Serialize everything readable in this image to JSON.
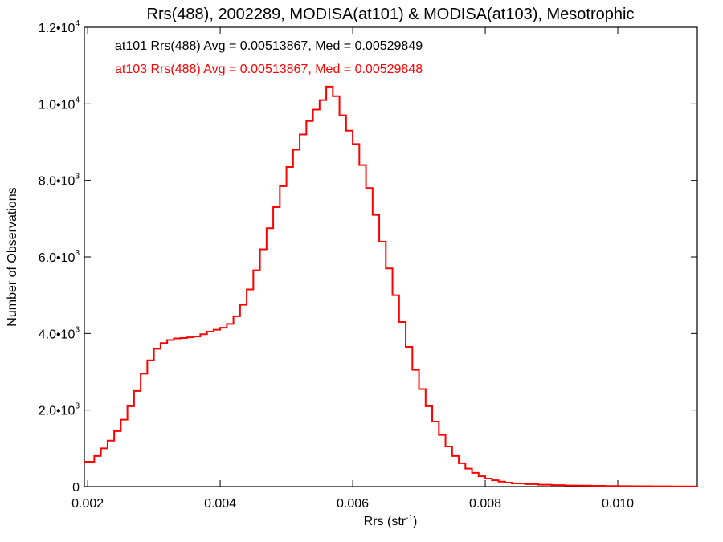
{
  "chart_data": {
    "type": "line",
    "title": "Rrs(488), 2002289, MODISA(at101) & MODISA(at103), Mesotrophic",
    "xlabel": "Rrs (str",
    "xlabel_exp": "-1",
    "xlabel_close": ")",
    "ylabel": "Number of Observations",
    "xlim": [
      0.00195,
      0.0112
    ],
    "ylim": [
      0,
      12000
    ],
    "x_ticks": [
      {
        "value": 0.002,
        "label": "0.002"
      },
      {
        "value": 0.004,
        "label": "0.004"
      },
      {
        "value": 0.006,
        "label": "0.006"
      },
      {
        "value": 0.008,
        "label": "0.008"
      },
      {
        "value": 0.01,
        "label": "0.010"
      }
    ],
    "y_ticks": [
      {
        "value": 0,
        "mantissa": "0",
        "exp": ""
      },
      {
        "value": 2000,
        "mantissa": "2.0•10",
        "exp": "3"
      },
      {
        "value": 4000,
        "mantissa": "4.0•10",
        "exp": "3"
      },
      {
        "value": 6000,
        "mantissa": "6.0•10",
        "exp": "3"
      },
      {
        "value": 8000,
        "mantissa": "8.0•10",
        "exp": "3"
      },
      {
        "value": 10000,
        "mantissa": "1.0•10",
        "exp": "4"
      },
      {
        "value": 12000,
        "mantissa": "1.2•10",
        "exp": "4"
      }
    ],
    "annotations": [
      {
        "text": "at101 Rrs(488) Avg = 0.00513867, Med = 0.00529849",
        "color": "#000000"
      },
      {
        "text": "at103 Rrs(488) Avg = 0.00513867, Med = 0.00529848",
        "color": "#ff0000"
      }
    ],
    "series": [
      {
        "color": "#ff0000",
        "style": "histogram-step",
        "points": [
          [
            0.00195,
            650
          ],
          [
            0.0021,
            800
          ],
          [
            0.0022,
            1000
          ],
          [
            0.0023,
            1200
          ],
          [
            0.0024,
            1450
          ],
          [
            0.0025,
            1750
          ],
          [
            0.0026,
            2100
          ],
          [
            0.0027,
            2500
          ],
          [
            0.0028,
            2950
          ],
          [
            0.0029,
            3300
          ],
          [
            0.003,
            3600
          ],
          [
            0.0031,
            3750
          ],
          [
            0.0032,
            3830
          ],
          [
            0.0033,
            3870
          ],
          [
            0.0034,
            3880
          ],
          [
            0.0035,
            3900
          ],
          [
            0.0036,
            3920
          ],
          [
            0.0037,
            3980
          ],
          [
            0.0038,
            4050
          ],
          [
            0.0039,
            4100
          ],
          [
            0.004,
            4150
          ],
          [
            0.0041,
            4250
          ],
          [
            0.0042,
            4450
          ],
          [
            0.0043,
            4750
          ],
          [
            0.0044,
            5150
          ],
          [
            0.0045,
            5650
          ],
          [
            0.0046,
            6200
          ],
          [
            0.0047,
            6750
          ],
          [
            0.0048,
            7300
          ],
          [
            0.0049,
            7850
          ],
          [
            0.005,
            8350
          ],
          [
            0.0051,
            8800
          ],
          [
            0.0052,
            9200
          ],
          [
            0.0053,
            9550
          ],
          [
            0.0054,
            9850
          ],
          [
            0.0055,
            10100
          ],
          [
            0.0056,
            10450
          ],
          [
            0.0057,
            10200
          ],
          [
            0.0058,
            9700
          ],
          [
            0.0059,
            9300
          ],
          [
            0.006,
            8950
          ],
          [
            0.0061,
            8400
          ],
          [
            0.0062,
            7800
          ],
          [
            0.0063,
            7100
          ],
          [
            0.0064,
            6400
          ],
          [
            0.0065,
            5700
          ],
          [
            0.0066,
            5000
          ],
          [
            0.0067,
            4300
          ],
          [
            0.0068,
            3650
          ],
          [
            0.0069,
            3050
          ],
          [
            0.007,
            2550
          ],
          [
            0.0071,
            2100
          ],
          [
            0.0072,
            1700
          ],
          [
            0.0073,
            1350
          ],
          [
            0.0074,
            1050
          ],
          [
            0.0075,
            800
          ],
          [
            0.0076,
            610
          ],
          [
            0.0077,
            470
          ],
          [
            0.0078,
            360
          ],
          [
            0.0079,
            270
          ],
          [
            0.008,
            210
          ],
          [
            0.0081,
            165
          ],
          [
            0.0082,
            130
          ],
          [
            0.0083,
            105
          ],
          [
            0.0084,
            85
          ],
          [
            0.0086,
            65
          ],
          [
            0.0088,
            50
          ],
          [
            0.009,
            40
          ],
          [
            0.0092,
            30
          ],
          [
            0.0094,
            25
          ],
          [
            0.0096,
            20
          ],
          [
            0.0098,
            15
          ],
          [
            0.01,
            12
          ],
          [
            0.0102,
            10
          ],
          [
            0.0105,
            8
          ],
          [
            0.0108,
            6
          ],
          [
            0.0112,
            5
          ]
        ]
      }
    ]
  }
}
